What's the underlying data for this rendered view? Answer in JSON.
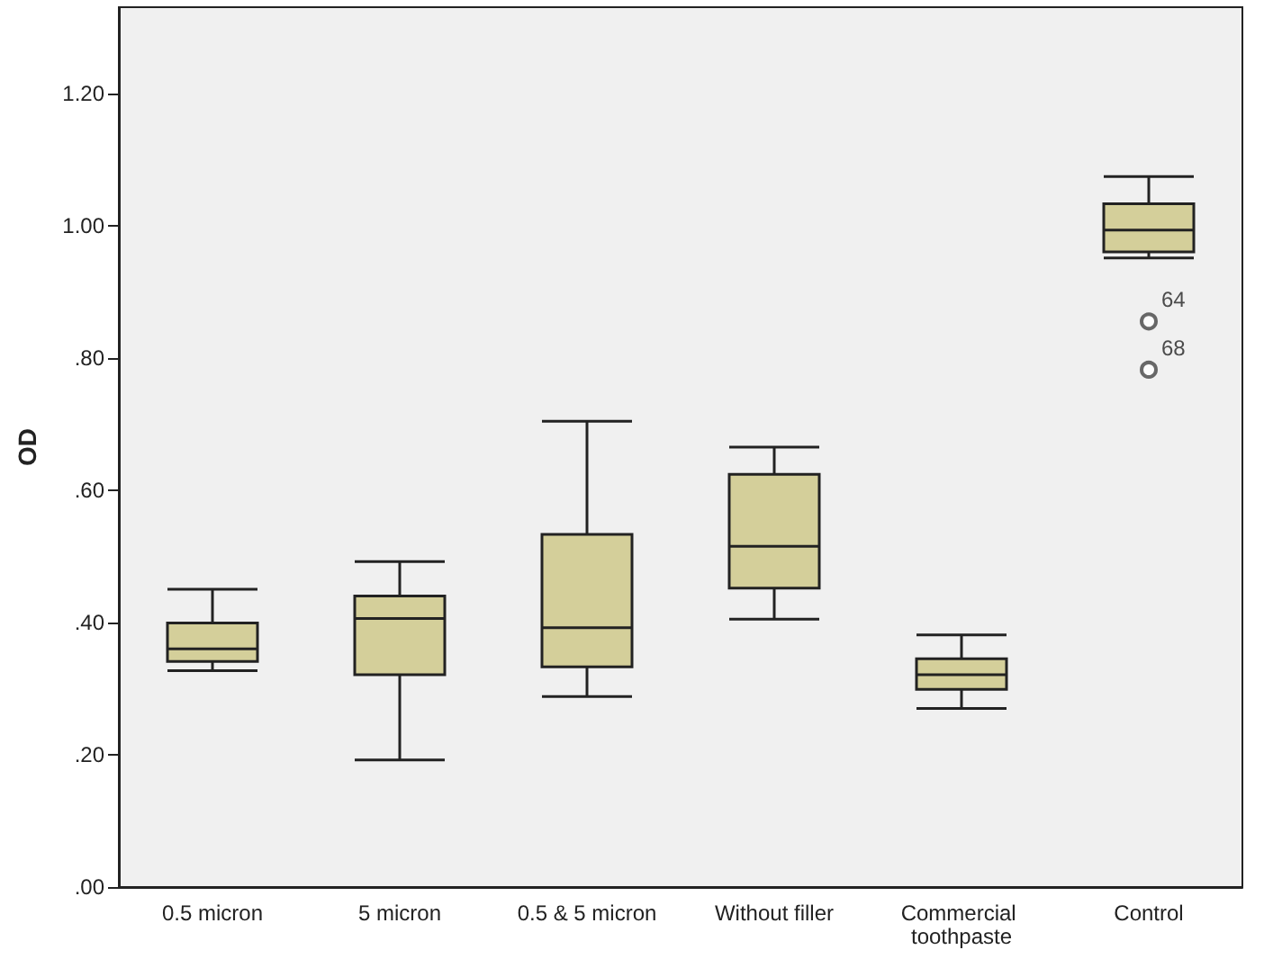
{
  "chart_data": {
    "type": "box",
    "ylabel": "OD",
    "categories": [
      "0.5 micron",
      "5 micron",
      "0.5 & 5 micron",
      "Without filler",
      "Commercial toothpaste",
      "Control"
    ],
    "color": "#d4cf9a",
    "boxes": [
      {
        "low": 0.327,
        "q1": 0.341,
        "median": 0.36,
        "q3": 0.399,
        "high": 0.45
      },
      {
        "low": 0.192,
        "q1": 0.321,
        "median": 0.406,
        "q3": 0.44,
        "high": 0.492
      },
      {
        "low": 0.288,
        "q1": 0.333,
        "median": 0.392,
        "q3": 0.533,
        "high": 0.704
      },
      {
        "low": 0.405,
        "q1": 0.452,
        "median": 0.515,
        "q3": 0.624,
        "high": 0.665
      },
      {
        "low": 0.27,
        "q1": 0.299,
        "median": 0.321,
        "q3": 0.345,
        "high": 0.381
      },
      {
        "low": 0.951,
        "q1": 0.96,
        "median": 0.993,
        "q3": 1.033,
        "high": 1.074,
        "outliers": [
          0.855,
          0.782
        ]
      }
    ],
    "ylim": [
      0,
      1.33
    ],
    "yticks": [
      {
        "value": 0,
        "label": ".00"
      },
      {
        "value": 0.2,
        "label": ".20"
      },
      {
        "value": 0.4,
        "label": ".40"
      },
      {
        "value": 0.6,
        "label": ".60"
      },
      {
        "value": 0.8,
        "label": ".80"
      },
      {
        "value": 1,
        "label": "1.00"
      },
      {
        "value": 1.2,
        "label": "1.20"
      }
    ],
    "grid": false,
    "annotations": [
      "64",
      "68"
    ]
  }
}
